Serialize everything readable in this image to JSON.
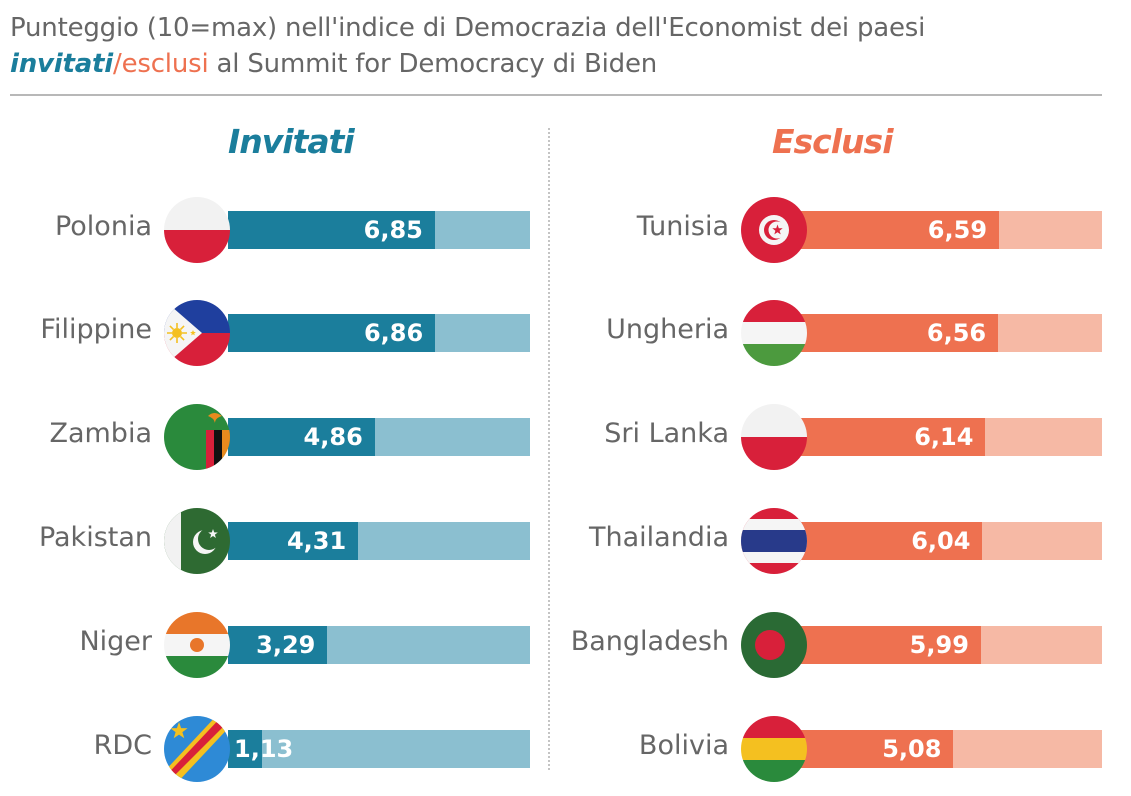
{
  "title": {
    "line1": "Punteggio (10=max) nell'indice di Democrazia dell'Economist dei paesi",
    "invitati": "invitati",
    "slash": "/",
    "esclusi": "esclusi",
    "rest": " al Summit for Democracy di Biden"
  },
  "colors": {
    "invited": "#1b7e9c",
    "invited_track": "#8bbfd0",
    "excluded": "#ee7150",
    "excluded_track": "#f6b9a5"
  },
  "chart_data": {
    "type": "bar",
    "title": "Punteggio (10=max) nell'indice di Democrazia dell'Economist dei paesi invitati/esclusi al Summit for Democracy di Biden",
    "xlim": [
      0,
      10
    ],
    "panels": [
      {
        "name": "Invitati",
        "categories": [
          "Polonia",
          "Filippine",
          "Zambia",
          "Pakistan",
          "Niger",
          "RDC"
        ],
        "values": [
          6.85,
          6.86,
          4.86,
          4.31,
          3.29,
          1.13
        ],
        "labels": [
          "6,85",
          "6,86",
          "4,86",
          "4,31",
          "3,29",
          "1,13"
        ],
        "flag_icons": [
          "poland-flag-icon",
          "philippines-flag-icon",
          "zambia-flag-icon",
          "pakistan-flag-icon",
          "niger-flag-icon",
          "drc-flag-icon"
        ]
      },
      {
        "name": "Esclusi",
        "categories": [
          "Tunisia",
          "Ungheria",
          "Sri Lanka",
          "Thailandia",
          "Bangladesh",
          "Bolivia"
        ],
        "values": [
          6.59,
          6.56,
          6.14,
          6.04,
          5.99,
          5.08
        ],
        "labels": [
          "6,59",
          "6,56",
          "6,14",
          "6,04",
          "5,99",
          "5,08"
        ],
        "flag_icons": [
          "tunisia-flag-icon",
          "hungary-flag-icon",
          "sri-lanka-flag-icon",
          "thailand-flag-icon",
          "bangladesh-flag-icon",
          "bolivia-flag-icon"
        ]
      }
    ]
  }
}
